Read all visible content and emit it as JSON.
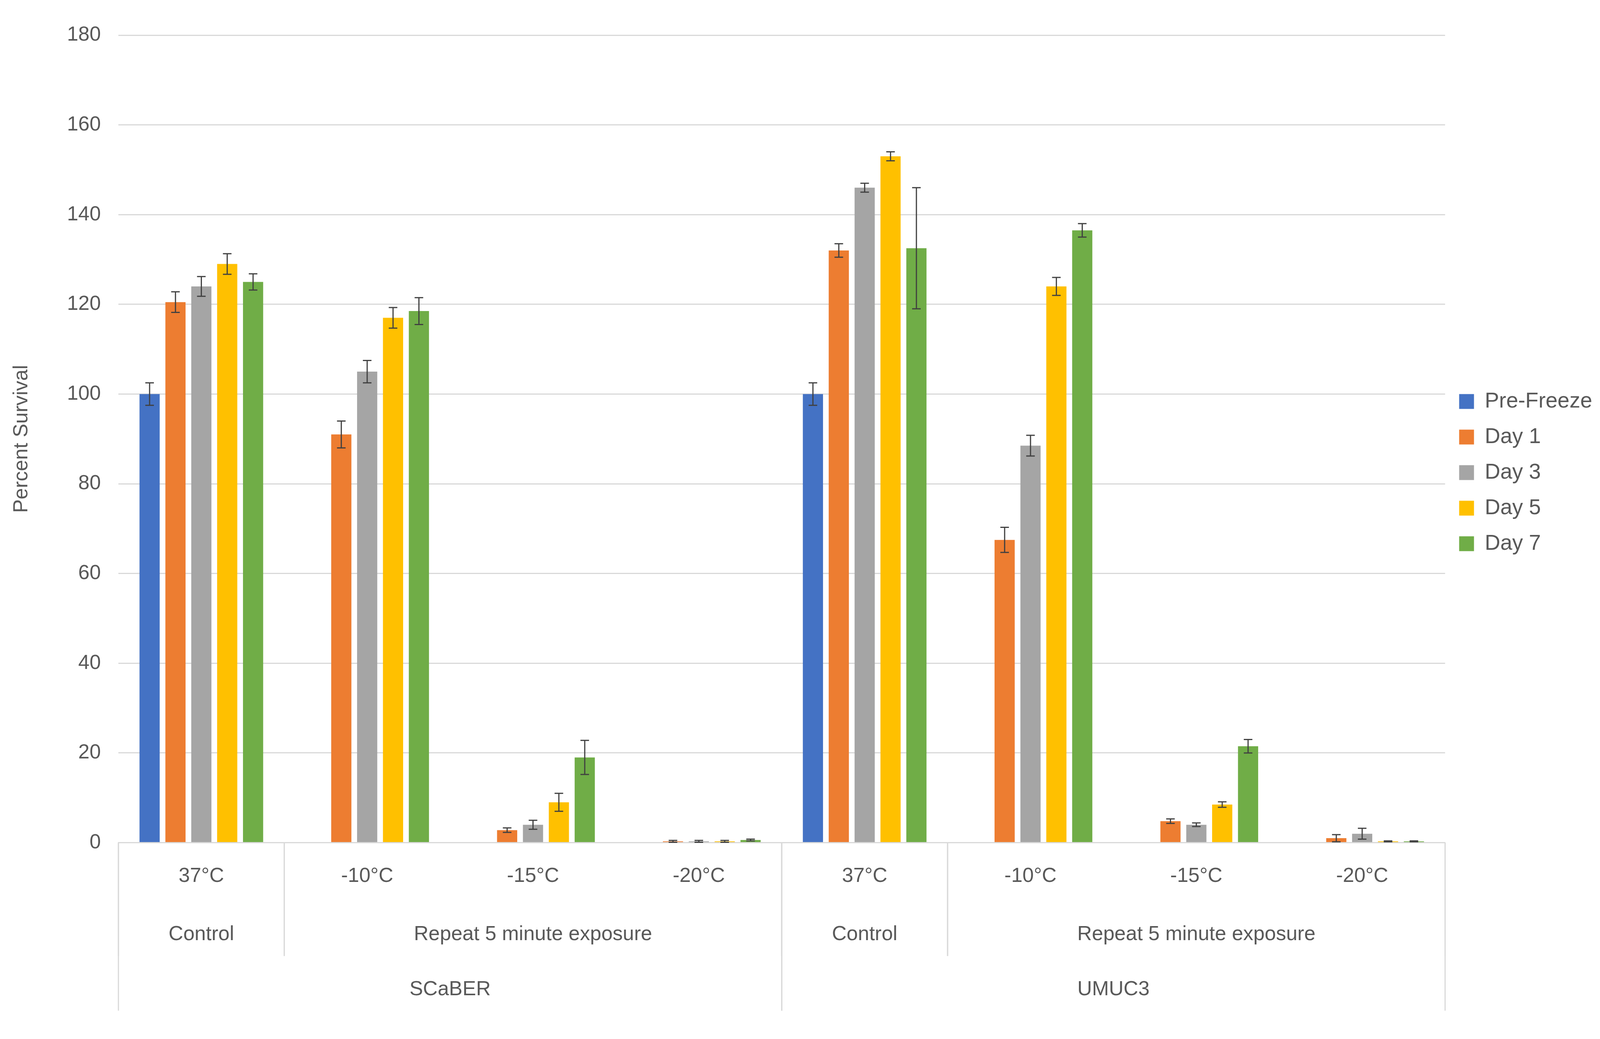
{
  "chart_data": {
    "type": "bar",
    "y_label": "Percent Survival",
    "categories": [
      "37°C",
      "-10°C",
      "-15°C",
      "-20°C",
      "37°C",
      "-10°C",
      "-15°C",
      "-20°C"
    ],
    "category_levels": [
      [
        "Control",
        "Repeat 5 minute exposure",
        "Repeat 5 minute exposure",
        "Repeat 5 minute exposure",
        "Control",
        "Repeat 5 minute exposure",
        "Repeat 5 minute exposure",
        "Repeat 5 minute exposure"
      ],
      [
        "SCaBER",
        "SCaBER",
        "SCaBER",
        "SCaBER",
        "UMUC3",
        "UMUC3",
        "UMUC3",
        "UMUC3"
      ]
    ],
    "series": [
      {
        "name": "Pre-Freeze",
        "color": "#4472c4",
        "values": [
          100,
          null,
          null,
          null,
          100,
          null,
          null,
          null
        ],
        "errors": [
          2.5,
          null,
          null,
          null,
          2.5,
          null,
          null,
          null
        ]
      },
      {
        "name": "Day 1",
        "color": "#ed7d31",
        "values": [
          120.5,
          91,
          2.8,
          0.3,
          132,
          67.5,
          4.8,
          1
        ],
        "errors": [
          2.3,
          3,
          0.5,
          0.2,
          1.5,
          2.8,
          0.5,
          0.8
        ]
      },
      {
        "name": "Day 3",
        "color": "#a5a5a5",
        "values": [
          124,
          105,
          4,
          0.3,
          146,
          88.5,
          4,
          2
        ],
        "errors": [
          2.2,
          2.5,
          1,
          0.2,
          1,
          2.3,
          0.4,
          1.2
        ]
      },
      {
        "name": "Day 5",
        "color": "#ffc000",
        "values": [
          129,
          117,
          9,
          0.3,
          153,
          124,
          8.5,
          0.3
        ],
        "errors": [
          2.3,
          2.3,
          2,
          0.2,
          1,
          2,
          0.6,
          0.1
        ]
      },
      {
        "name": "Day 7",
        "color": "#70ad47",
        "values": [
          125,
          118.5,
          19,
          0.6,
          132.5,
          136.5,
          21.5,
          0.3
        ],
        "errors": [
          1.8,
          3,
          3.8,
          0.2,
          13.5,
          1.5,
          1.5,
          0.1
        ]
      }
    ],
    "ylim": [
      0,
      180
    ],
    "yticks": [
      0,
      20,
      40,
      60,
      80,
      100,
      120,
      140,
      160,
      180
    ],
    "grid": true,
    "legend": "right"
  }
}
